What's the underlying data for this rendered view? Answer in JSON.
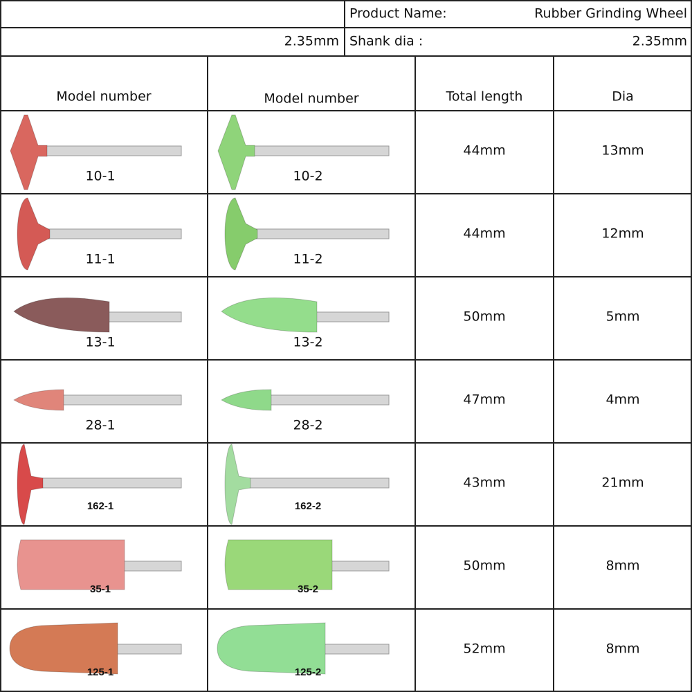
{
  "header": {
    "product_name_label": "Product Name:",
    "product_name": "Rubber Grinding Wheel",
    "shank_left": "2.35mm",
    "shank_label": "Shank dia :",
    "shank_value": "2.35mm"
  },
  "table": {
    "columns": [
      "Model number",
      "Model number",
      "Total length",
      "Dia"
    ],
    "rows": [
      [
        "10-1",
        "10-2",
        "44mm",
        "13mm"
      ],
      [
        "11-1",
        "11-2",
        "44mm",
        "12mm"
      ],
      [
        "13-1",
        "13-2",
        "50mm",
        "5mm"
      ],
      [
        "28-1",
        "28-2",
        "47mm",
        "4mm"
      ],
      [
        "162-1",
        "162-2",
        "43mm",
        "21mm"
      ],
      [
        "35-1",
        "35-2",
        "50mm",
        "8mm"
      ],
      [
        "125-1",
        "125-2",
        "52mm",
        "8mm"
      ]
    ]
  }
}
